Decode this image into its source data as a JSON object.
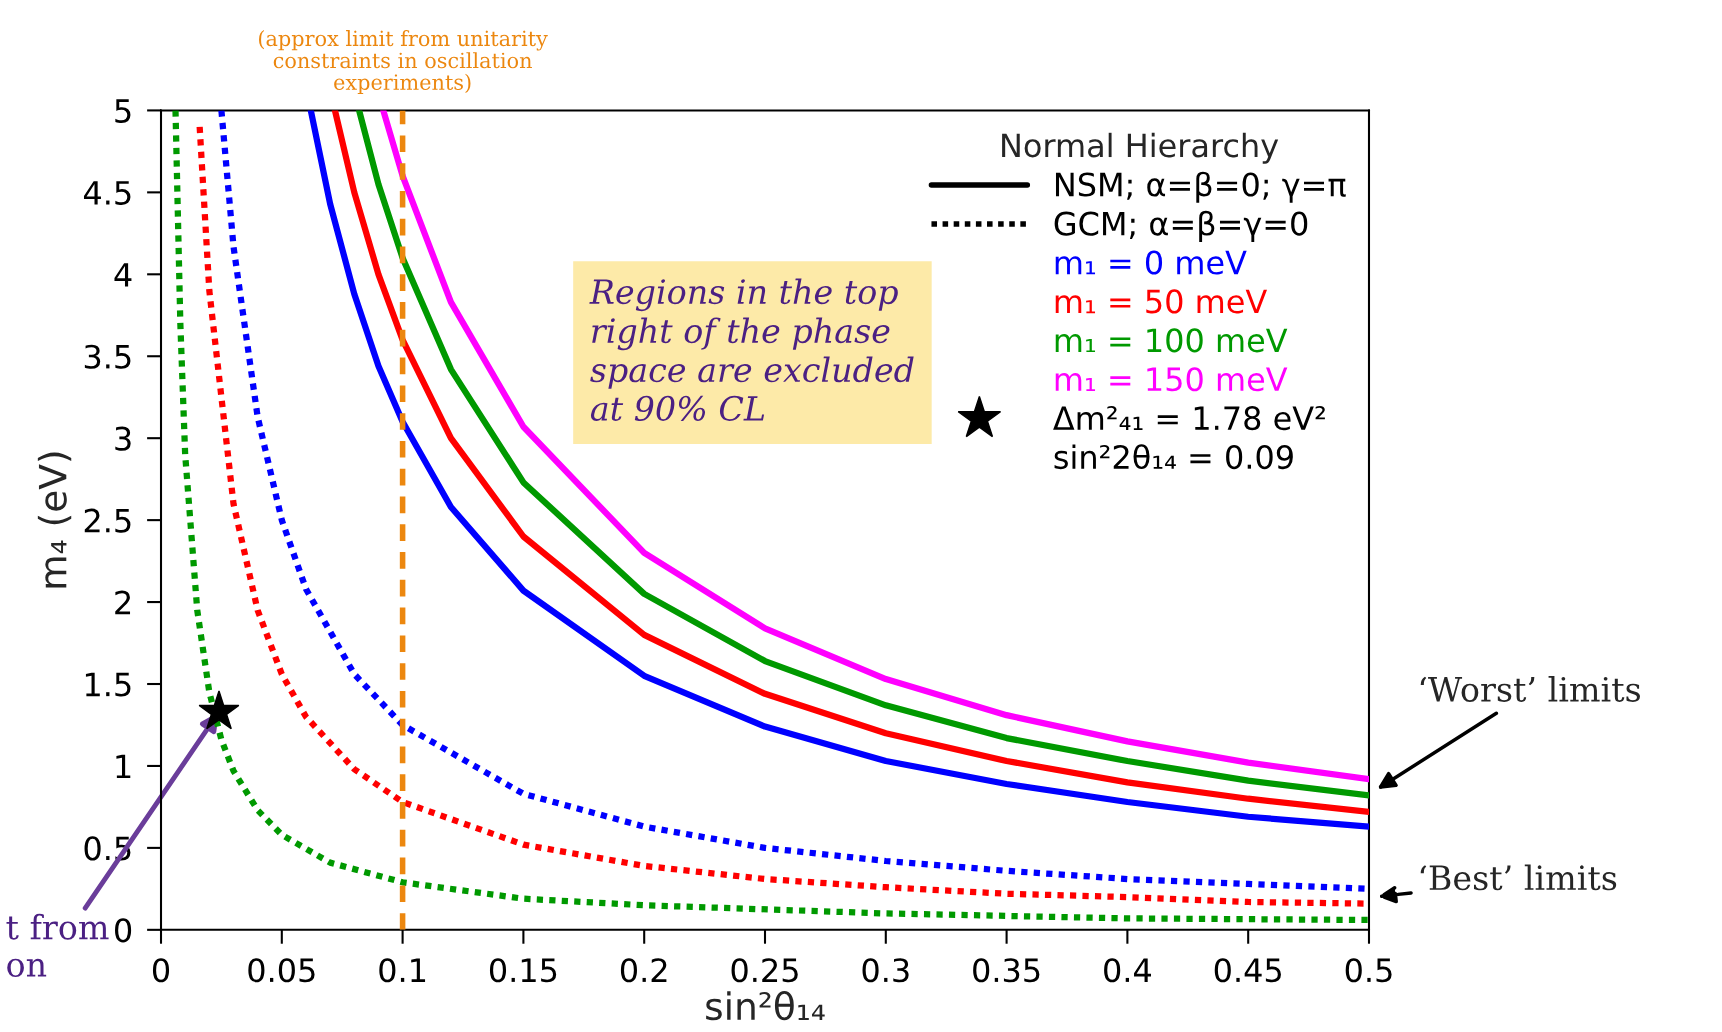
{
  "chart_data": {
    "type": "line",
    "xlabel": "sin²θ₁₄",
    "ylabel": "m₄ (eV)",
    "legend_title": "Normal Hierarchy",
    "legend": "top right",
    "xlim": [
      0,
      0.5
    ],
    "ylim": [
      0,
      5
    ],
    "xticks": [
      0,
      0.05,
      0.1,
      0.15,
      0.2,
      0.25,
      0.3,
      0.35,
      0.4,
      0.45,
      0.5
    ],
    "yticks": [
      0,
      0.5,
      1,
      1.5,
      2,
      2.5,
      3,
      3.5,
      4,
      4.5,
      5
    ],
    "series": [
      {
        "color": "#0000ff",
        "line_style": "dotted",
        "x": [
          0.025,
          0.03,
          0.04,
          0.05,
          0.06,
          0.08,
          0.1,
          0.15,
          0.2,
          0.25,
          0.3,
          0.35,
          0.4,
          0.45,
          0.5
        ],
        "values": [
          5.0,
          4.17,
          3.13,
          2.5,
          2.08,
          1.56,
          1.25,
          0.83,
          0.63,
          0.5,
          0.42,
          0.36,
          0.31,
          0.28,
          0.25
        ]
      },
      {
        "color": "#ff0000",
        "line_style": "dotted",
        "x": [
          0.016,
          0.02,
          0.03,
          0.04,
          0.05,
          0.06,
          0.08,
          0.1,
          0.15,
          0.2,
          0.25,
          0.3,
          0.35,
          0.4,
          0.45,
          0.5
        ],
        "values": [
          4.9,
          3.9,
          2.6,
          1.95,
          1.56,
          1.3,
          0.98,
          0.78,
          0.52,
          0.39,
          0.31,
          0.26,
          0.22,
          0.2,
          0.17,
          0.16
        ]
      },
      {
        "color": "#009900",
        "line_style": "dotted",
        "x": [
          0.006,
          0.008,
          0.01,
          0.015,
          0.02,
          0.025,
          0.03,
          0.04,
          0.05,
          0.07,
          0.1,
          0.15,
          0.2,
          0.3,
          0.4,
          0.5
        ],
        "values": [
          5.0,
          3.7,
          2.9,
          1.95,
          1.45,
          1.16,
          0.97,
          0.73,
          0.58,
          0.41,
          0.29,
          0.19,
          0.15,
          0.1,
          0.07,
          0.06
        ]
      },
      {
        "name": "m₁ = 0 meV",
        "color": "#0000ff",
        "line_style": "solid",
        "x": [
          0.062,
          0.07,
          0.08,
          0.09,
          0.1,
          0.12,
          0.15,
          0.2,
          0.25,
          0.3,
          0.35,
          0.4,
          0.45,
          0.5
        ],
        "values": [
          5.0,
          4.43,
          3.88,
          3.44,
          3.1,
          2.58,
          2.07,
          1.55,
          1.24,
          1.03,
          0.89,
          0.78,
          0.69,
          0.63
        ]
      },
      {
        "name": "m₁ = 50 meV",
        "color": "#ff0000",
        "line_style": "solid",
        "x": [
          0.072,
          0.08,
          0.09,
          0.1,
          0.12,
          0.15,
          0.2,
          0.25,
          0.3,
          0.35,
          0.4,
          0.45,
          0.5
        ],
        "values": [
          5.0,
          4.5,
          4.0,
          3.6,
          3.0,
          2.4,
          1.8,
          1.44,
          1.2,
          1.03,
          0.9,
          0.8,
          0.72
        ]
      },
      {
        "name": "m₁ = 100 meV",
        "color": "#009900",
        "line_style": "solid",
        "x": [
          0.082,
          0.09,
          0.1,
          0.12,
          0.15,
          0.2,
          0.25,
          0.3,
          0.35,
          0.4,
          0.45,
          0.5
        ],
        "values": [
          5.0,
          4.55,
          4.1,
          3.42,
          2.73,
          2.05,
          1.64,
          1.37,
          1.17,
          1.03,
          0.91,
          0.82
        ]
      },
      {
        "name": "m₁ = 150 meV",
        "color": "#ff00ff",
        "line_style": "solid",
        "x": [
          0.092,
          0.1,
          0.12,
          0.15,
          0.2,
          0.25,
          0.3,
          0.35,
          0.4,
          0.45,
          0.5
        ],
        "values": [
          5.0,
          4.6,
          3.83,
          3.07,
          2.3,
          1.84,
          1.53,
          1.31,
          1.15,
          1.02,
          0.92
        ]
      },
      {
        "type": "scatter",
        "marker": "star",
        "name": "Δm²₄₁ = 1.78 eV²",
        "color": "#000000",
        "x": [
          0.024
        ],
        "values": [
          1.33
        ]
      }
    ],
    "ref_lines": [
      {
        "axis": "x",
        "value": 0.1,
        "label": "(approx limit from unitarity\nconstraints in oscillation\nexperiments)",
        "color": "#ec870f",
        "line_style": "dashed"
      }
    ],
    "annotations": [
      "NSM; α=β=0; γ=π",
      "GCM; α=β=γ=0",
      "sin²2θ₁₄ = 0.09",
      "Regions in the top\nright of the phase\nspace are excluded\nat 90% CL",
      "‘Worst’ limits",
      "‘Best’ limits",
      {
        "text": "t from\non",
        "x": 0.024,
        "y": 1.33
      }
    ]
  }
}
